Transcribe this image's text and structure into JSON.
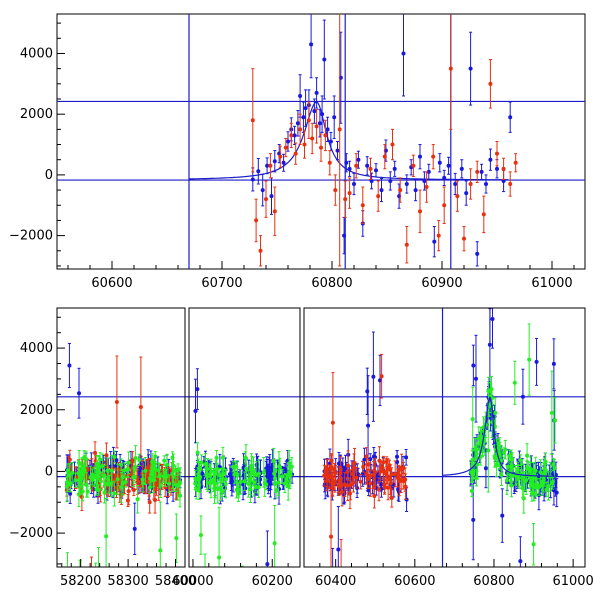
{
  "chart_data": [
    {
      "type": "scatter",
      "panel": "top",
      "xlim": [
        60550,
        61030
      ],
      "ylim": [
        -3100,
        5300
      ],
      "xticks": [
        60600,
        60700,
        60800,
        60900,
        61000
      ],
      "yticks": [
        -2000,
        0,
        2000,
        4000
      ],
      "hlines": [
        2420,
        -170
      ],
      "vlines": [
        60670,
        60812,
        60908
      ],
      "grid": false,
      "colors": {
        "red": "#e8300e",
        "blue": "#1818e0",
        "green": "#22ee22",
        "orange": "#c87010",
        "line": "#1c1cc8"
      },
      "curve": {
        "x0": 60670,
        "x_peak": 60786,
        "x_end": 60960,
        "baseline": -170,
        "peak": 2400
      },
      "series": [
        {
          "color": "blue",
          "points": [
            [
              60728,
              -150,
              380
            ],
            [
              60733,
              120,
              420
            ],
            [
              60737,
              -500,
              520
            ],
            [
              60741,
              300,
              260
            ],
            [
              60745,
              -700,
              600
            ],
            [
              60748,
              450,
              350
            ],
            [
              60752,
              700,
              300
            ],
            [
              60756,
              400,
              280
            ],
            [
              60760,
              1100,
              320
            ],
            [
              60763,
              1500,
              380
            ],
            [
              60766,
              1300,
              300
            ],
            [
              60769,
              1700,
              420
            ],
            [
              60771,
              2600,
              700
            ],
            [
              60774,
              1900,
              500
            ],
            [
              60776,
              2200,
              600
            ],
            [
              60779,
              2300,
              500
            ],
            [
              60781,
              4300,
              1100
            ],
            [
              60784,
              2100,
              400
            ],
            [
              60786,
              2700,
              500
            ],
            [
              60789,
              1700,
              450
            ],
            [
              60791,
              2000,
              600
            ],
            [
              60793,
              3800,
              1300
            ],
            [
              60796,
              1500,
              400
            ],
            [
              60799,
              1100,
              300
            ],
            [
              60802,
              1900,
              700
            ],
            [
              60805,
              800,
              300
            ],
            [
              60808,
              3200,
              1500
            ],
            [
              60811,
              -2000,
              600
            ],
            [
              60813,
              400,
              300
            ],
            [
              60816,
              200,
              250
            ],
            [
              60820,
              -300,
              350
            ],
            [
              60824,
              500,
              280
            ],
            [
              60828,
              -1600,
              420
            ],
            [
              60832,
              300,
              300
            ],
            [
              60836,
              -200,
              260
            ],
            [
              60840,
              150,
              220
            ],
            [
              60845,
              -500,
              380
            ],
            [
              60849,
              800,
              350
            ],
            [
              60853,
              -200,
              300
            ],
            [
              60857,
              200,
              250
            ],
            [
              60861,
              -700,
              400
            ],
            [
              60865,
              4000,
              1400
            ],
            [
              60868,
              -300,
              300
            ],
            [
              60872,
              250,
              250
            ],
            [
              60876,
              -500,
              350
            ],
            [
              60880,
              600,
              400
            ],
            [
              60884,
              -200,
              300
            ],
            [
              60888,
              100,
              250
            ],
            [
              60893,
              -2200,
              500
            ],
            [
              60898,
              400,
              300
            ],
            [
              60902,
              -100,
              250
            ],
            [
              60906,
              300,
              280
            ],
            [
              60912,
              -300,
              350
            ],
            [
              60918,
              200,
              300
            ],
            [
              60922,
              -600,
              400
            ],
            [
              60926,
              3500,
              1200
            ],
            [
              60932,
              -2600,
              400
            ],
            [
              60936,
              100,
              250
            ],
            [
              60940,
              -300,
              300
            ],
            [
              60944,
              500,
              350
            ],
            [
              60950,
              200,
              300
            ],
            [
              60956,
              -200,
              350
            ],
            [
              60962,
              1900,
              500
            ]
          ]
        },
        {
          "color": "red",
          "points": [
            [
              60728,
              1800,
              1700
            ],
            [
              60731,
              -1500,
              700
            ],
            [
              60735,
              -2500,
              500
            ],
            [
              60740,
              -800,
              600
            ],
            [
              60744,
              300,
              400
            ],
            [
              60748,
              -1200,
              800
            ],
            [
              60753,
              600,
              350
            ],
            [
              60758,
              900,
              300
            ],
            [
              60763,
              1300,
              400
            ],
            [
              60767,
              700,
              350
            ],
            [
              60771,
              1500,
              500
            ],
            [
              60775,
              1000,
              450
            ],
            [
              60779,
              1800,
              600
            ],
            [
              60782,
              1200,
              500
            ],
            [
              60786,
              1600,
              550
            ],
            [
              60790,
              900,
              450
            ],
            [
              60794,
              1300,
              500
            ],
            [
              60798,
              400,
              400
            ],
            [
              60803,
              -500,
              500
            ],
            [
              60807,
              1500,
              4500
            ],
            [
              60812,
              -800,
              600
            ],
            [
              60816,
              -600,
              500
            ],
            [
              60822,
              300,
              400
            ],
            [
              60828,
              -1000,
              600
            ],
            [
              60835,
              200,
              350
            ],
            [
              60842,
              -700,
              500
            ],
            [
              60848,
              600,
              400
            ],
            [
              60855,
              1000,
              500
            ],
            [
              60862,
              -500,
              400
            ],
            [
              60868,
              -2300,
              600
            ],
            [
              60874,
              300,
              350
            ],
            [
              60880,
              -1200,
              700
            ],
            [
              60886,
              -400,
              500
            ],
            [
              60892,
              600,
              400
            ],
            [
              60897,
              -2000,
              500
            ],
            [
              60902,
              -1000,
              600
            ],
            [
              60908,
              3500,
              2000
            ],
            [
              60914,
              -700,
              500
            ],
            [
              60920,
              -2100,
              400
            ],
            [
              60926,
              -300,
              500
            ],
            [
              60932,
              100,
              350
            ],
            [
              60938,
              -1300,
              600
            ],
            [
              60944,
              3000,
              800
            ],
            [
              60950,
              700,
              400
            ],
            [
              60956,
              200,
              350
            ],
            [
              60962,
              -300,
              400
            ],
            [
              60967,
              400,
              300
            ]
          ]
        }
      ]
    },
    {
      "type": "scatter",
      "panel": "bottom",
      "ylim": [
        -3100,
        5300
      ],
      "yticks": [
        -2000,
        0,
        2000,
        4000
      ],
      "hlines": [
        2420,
        -170
      ],
      "grid": false,
      "segments": [
        {
          "xlim": [
            58150,
            58420
          ],
          "xticks": [
            58200,
            58300,
            58400
          ]
        },
        {
          "xlim": [
            59990,
            60270
          ],
          "xticks": [
            60000,
            60200
          ]
        },
        {
          "xlim": [
            60320,
            61030
          ],
          "xticks": [
            60400,
            60600,
            60800,
            61000
          ],
          "vlines": [
            60670
          ]
        }
      ],
      "clusters": [
        {
          "segment": 0,
          "x_range": [
            58170,
            58410
          ],
          "n": 110,
          "spread": 520,
          "series": [
            "blue",
            "red",
            "green"
          ]
        },
        {
          "segment": 1,
          "x_range": [
            60005,
            60250
          ],
          "n": 95,
          "spread": 480,
          "series": [
            "blue",
            "green"
          ]
        },
        {
          "segment": 2,
          "x_range": [
            60370,
            60580
          ],
          "n": 85,
          "spread": 620,
          "series": [
            "blue",
            "red"
          ]
        },
        {
          "segment": 2,
          "x_range": [
            60740,
            60960
          ],
          "n": 120,
          "spread": 480,
          "series": [
            "blue",
            "green"
          ],
          "peak_at": 60790,
          "peak": 2400
        }
      ]
    }
  ]
}
